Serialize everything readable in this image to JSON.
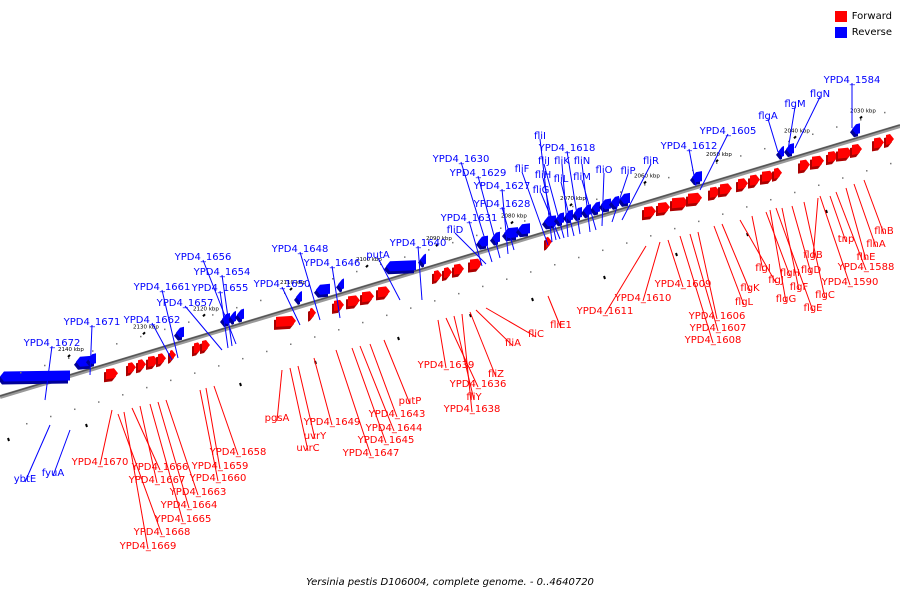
{
  "legend": {
    "forward_label": "Forward",
    "reverse_label": "Reverse",
    "forward_color": "#ff0000",
    "reverse_color": "#0000ff"
  },
  "caption": "Yersinia pestis D106004, complete genome. - 0..4640720",
  "scale_ticks": [
    "2140 kbp",
    "2130 kbp",
    "2120 kbp",
    "2110 kbp",
    "2100 kbp",
    "2090 kbp",
    "2080 kbp",
    "2070 kbp",
    "2060 kbp",
    "2050 kbp",
    "2040 kbp",
    "2030 kbp"
  ],
  "reverse_labels": [
    "ybtE",
    "fyuA",
    "YPD4_1672",
    "YPD4_1671",
    "YPD4_1662",
    "YPD4_1661",
    "YPD4_1657",
    "YPD4_1655",
    "YPD4_1654",
    "YPD4_1656",
    "YPD4_1650",
    "YPD4_1648",
    "YPD4_1646",
    "putA",
    "YPD4_1640",
    "YPD4_1631",
    "fliD",
    "YPD4_1630",
    "YPD4_1629",
    "YPD4_1627",
    "YPD4_1628",
    "fliF",
    "fliI",
    "fliH",
    "fliG",
    "fliJ",
    "fliK",
    "fliL",
    "YPD4_1618",
    "fliN",
    "fliM",
    "fliO",
    "fliP",
    "fliR",
    "YPD4_1612",
    "YPD4_1605",
    "flgA",
    "flgM",
    "flgN",
    "YPD4_1584"
  ],
  "forward_labels": [
    "YPD4_1670",
    "YPD4_1666",
    "YPD4_1667",
    "YPD4_1668",
    "YPD4_1669",
    "YPD4_1665",
    "YPD4_1664",
    "YPD4_1663",
    "YPD4_1660",
    "YPD4_1659",
    "YPD4_1658",
    "pgsA",
    "uvrY",
    "uvrC",
    "YPD4_1649",
    "YPD4_1647",
    "YPD4_1645",
    "YPD4_1644",
    "YPD4_1643",
    "putP",
    "YPD4_1639",
    "YPD4_1636",
    "fliY",
    "YPD4_1638",
    "fliZ",
    "fliA",
    "fliC",
    "fliE1",
    "YPD4_1611",
    "YPD4_1610",
    "YPD4_1609",
    "YPD4_1608",
    "YPD4_1607",
    "YPD4_1606",
    "flgL",
    "flgK",
    "flgJ",
    "flgI",
    "flgH",
    "flgG",
    "flgF",
    "flgE",
    "flgD",
    "flgC",
    "flgB",
    "YPD4_1590",
    "YPD4_1588",
    "flhE",
    "flhA",
    "flhB",
    "tnp"
  ]
}
